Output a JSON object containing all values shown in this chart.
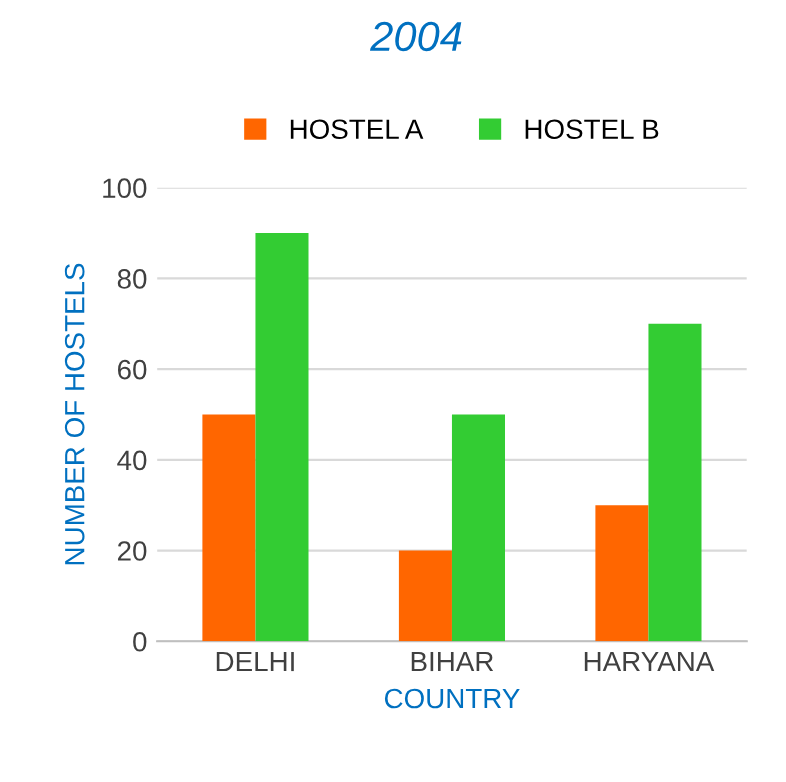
{
  "chart_data": {
    "type": "bar",
    "title": "2004",
    "xlabel": "COUNTRY",
    "ylabel": "NUMBER OF HOSTELS",
    "categories": [
      "DELHI",
      "BIHAR",
      "HARYANA"
    ],
    "series": [
      {
        "name": "HOSTEL A",
        "color": "#ff6600",
        "values": [
          50,
          20,
          30
        ]
      },
      {
        "name": "HOSTEL B",
        "color": "#33cc33",
        "values": [
          90,
          50,
          70
        ]
      }
    ],
    "ylim": [
      0,
      100
    ],
    "yticks": [
      0,
      20,
      40,
      60,
      80,
      100
    ],
    "grid": "y",
    "legend": "top"
  }
}
